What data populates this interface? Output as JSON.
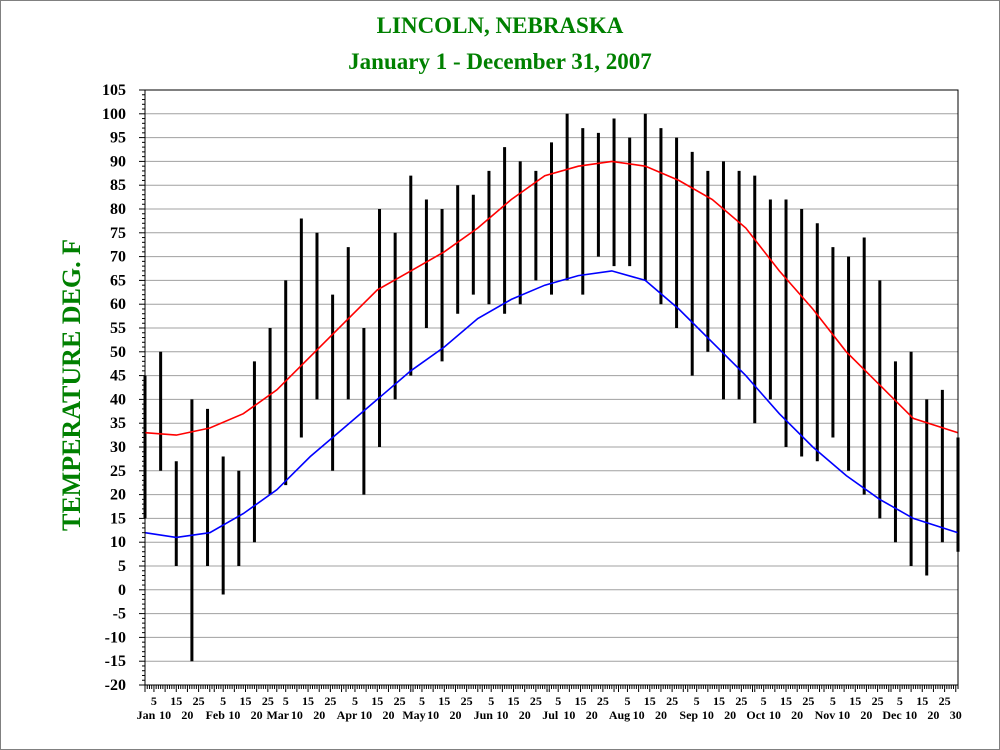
{
  "chart_data": {
    "type": "line",
    "title": "LINCOLN, NEBRASKA",
    "subtitle": "January 1 - December 31,  2007",
    "ylabel": "TEMPERATURE DEG. F",
    "xlabel": "",
    "ylim": [
      -20,
      105
    ],
    "ytick_step": 5,
    "xlim_days": [
      1,
      365
    ],
    "grid": "horizontal",
    "legend": "none",
    "colors": {
      "title": "#008000",
      "ylabel": "#008000",
      "daily_range": "#000000",
      "normal_high": "#ff0000",
      "normal_low": "#0000ff",
      "grid": "#a0a0a0",
      "axis_text": "#000000"
    },
    "months": [
      "Jan",
      "Feb",
      "Mar",
      "Apr",
      "May",
      "Jun",
      "Jul",
      "Aug",
      "Sep",
      "Oct",
      "Nov",
      "Dec"
    ],
    "day_ticks": [
      "5",
      "10",
      "15",
      "20",
      "25"
    ],
    "end_tick": "30",
    "series": [
      {
        "type": "range",
        "x": [
          1,
          8,
          15,
          22,
          29,
          36,
          43,
          50,
          57,
          64,
          71,
          78,
          85,
          92,
          99,
          106,
          113,
          120,
          127,
          134,
          141,
          148,
          155,
          162,
          169,
          176,
          183,
          190,
          197,
          204,
          211,
          218,
          225,
          232,
          239,
          246,
          253,
          260,
          267,
          274,
          281,
          288,
          295,
          302,
          309,
          316,
          323,
          330,
          337,
          344,
          351,
          358,
          365
        ],
        "high": [
          45,
          50,
          27,
          40,
          38,
          28,
          25,
          48,
          55,
          65,
          78,
          75,
          62,
          72,
          55,
          80,
          75,
          87,
          82,
          80,
          85,
          83,
          88,
          93,
          90,
          88,
          94,
          100,
          97,
          96,
          99,
          95,
          100,
          97,
          95,
          92,
          88,
          90,
          88,
          87,
          82,
          82,
          80,
          77,
          72,
          70,
          74,
          65,
          48,
          50,
          40,
          42,
          32
        ],
        "low": [
          15,
          25,
          5,
          -15,
          5,
          -1,
          5,
          10,
          20,
          22,
          32,
          40,
          25,
          40,
          20,
          30,
          40,
          45,
          55,
          48,
          58,
          62,
          60,
          58,
          60,
          65,
          62,
          65,
          62,
          70,
          68,
          68,
          65,
          60,
          55,
          45,
          50,
          40,
          40,
          35,
          40,
          30,
          28,
          27,
          32,
          25,
          20,
          15,
          10,
          5,
          3,
          10,
          8
        ]
      },
      {
        "type": "line",
        "x": [
          1,
          15,
          30,
          45,
          60,
          75,
          90,
          105,
          120,
          135,
          150,
          165,
          180,
          195,
          210,
          225,
          240,
          255,
          270,
          285,
          300,
          315,
          330,
          345,
          365
        ],
        "values": [
          33,
          32.5,
          34,
          37,
          42,
          49,
          56,
          63,
          67,
          71,
          76,
          82,
          87,
          89,
          90,
          89,
          86,
          82,
          76,
          67,
          59,
          50,
          43,
          36,
          33
        ]
      },
      {
        "type": "line",
        "x": [
          1,
          15,
          30,
          45,
          60,
          75,
          90,
          105,
          120,
          135,
          150,
          165,
          180,
          195,
          210,
          225,
          240,
          255,
          270,
          285,
          300,
          315,
          330,
          345,
          365
        ],
        "values": [
          12,
          11,
          12,
          16,
          21,
          28,
          34,
          40,
          46,
          51,
          57,
          61,
          64,
          66,
          67,
          65,
          59,
          52,
          45,
          37,
          30,
          24,
          19,
          15,
          12
        ]
      }
    ]
  }
}
